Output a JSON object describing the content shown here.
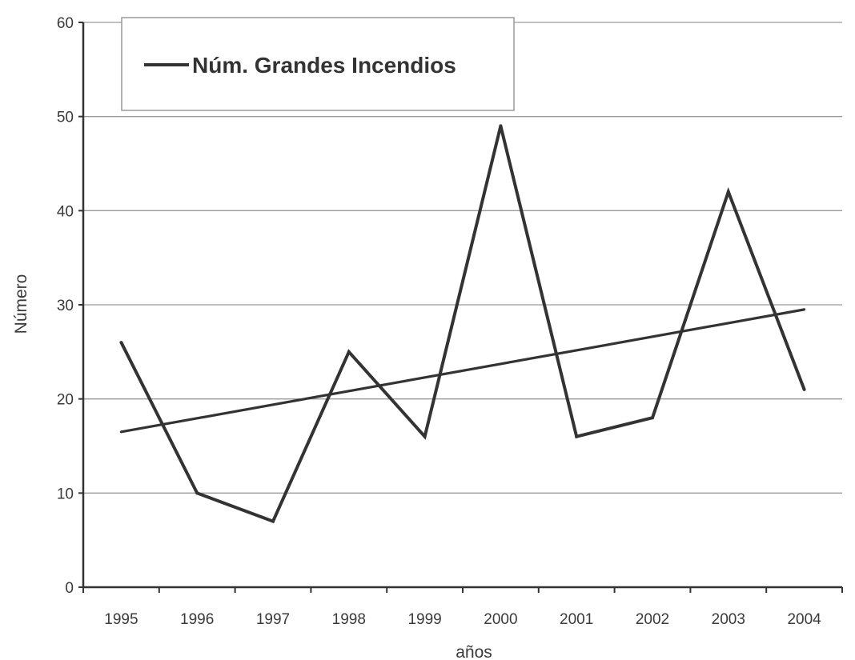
{
  "chart_data": {
    "type": "line",
    "title": "",
    "xlabel": "años",
    "ylabel": "Número",
    "categories": [
      "1995",
      "1996",
      "1997",
      "1998",
      "1999",
      "2000",
      "2001",
      "2002",
      "2003",
      "2004"
    ],
    "series": [
      {
        "name": "Núm. Grandes Incendios",
        "values": [
          26,
          10,
          7,
          25,
          16,
          49,
          16,
          18,
          42,
          21
        ]
      }
    ],
    "trendline": {
      "type": "linear",
      "start": 16.5,
      "end": 29.5
    },
    "ylim": [
      0,
      60
    ],
    "yticks": [
      0,
      10,
      20,
      30,
      40,
      50,
      60
    ],
    "grid": true,
    "legend": "top-left"
  },
  "colors": {
    "line": "#333333",
    "axis": "#333333",
    "grid": "#9a9a9a",
    "legend_border": "#9a9a9a",
    "text": "#3a3a3a"
  }
}
